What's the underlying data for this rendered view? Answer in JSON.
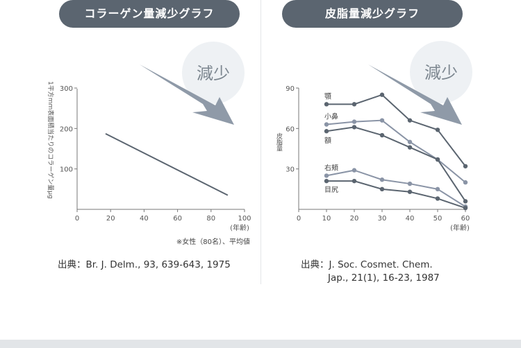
{
  "chart_data": [
    {
      "type": "line",
      "title": "コラーゲン量減少グラフ",
      "ylabel": "1平方mm表面積当たりのコラーゲン量μg",
      "xlabel": "(年齢)",
      "x_ticks": [
        0,
        20,
        40,
        60,
        80,
        100
      ],
      "y_ticks": [
        100,
        200,
        300
      ],
      "xlim": [
        0,
        100
      ],
      "ylim": [
        0,
        300
      ],
      "series": [
        {
          "name": "コラーゲン量",
          "x": [
            17,
            90
          ],
          "values": [
            187,
            35
          ]
        }
      ],
      "note": "※女性（80名）、平均値",
      "badge": "減少",
      "source": "出典：Br. J. Delm., 93, 639-643, 1975"
    },
    {
      "type": "line",
      "title": "皮脂量減少グラフ",
      "ylabel": "皮脂量",
      "xlabel": "(年齢)",
      "x_ticks": [
        0,
        10,
        20,
        30,
        40,
        50,
        60
      ],
      "y_ticks": [
        30,
        60,
        90
      ],
      "xlim": [
        0,
        60
      ],
      "ylim": [
        0,
        90
      ],
      "categories": [
        10,
        20,
        30,
        40,
        50,
        60
      ],
      "series": [
        {
          "name": "顎",
          "values": [
            78,
            78,
            85,
            66,
            59,
            32
          ],
          "color": "#5b6570"
        },
        {
          "name": "小鼻",
          "values": [
            63,
            65,
            66,
            50,
            37,
            20
          ],
          "color": "#8a94a6"
        },
        {
          "name": "額",
          "values": [
            58,
            61,
            55,
            46,
            37,
            6
          ],
          "color": "#5b6570"
        },
        {
          "name": "右頬",
          "values": [
            25,
            29,
            22,
            19,
            15,
            2
          ],
          "color": "#8a94a6"
        },
        {
          "name": "目尻",
          "values": [
            21,
            21,
            15,
            13,
            8,
            1
          ],
          "color": "#5b6570"
        }
      ],
      "badge": "減少",
      "source_line1": "出典：J. Soc. Cosmet. Chem.",
      "source_line2": "Jap., 21(1), 16-23, 1987"
    }
  ],
  "colors": {
    "pill": "#5b6570",
    "line_dark": "#5b6570",
    "arrow": "#8f9aa8",
    "badge": "#eef1f4"
  }
}
